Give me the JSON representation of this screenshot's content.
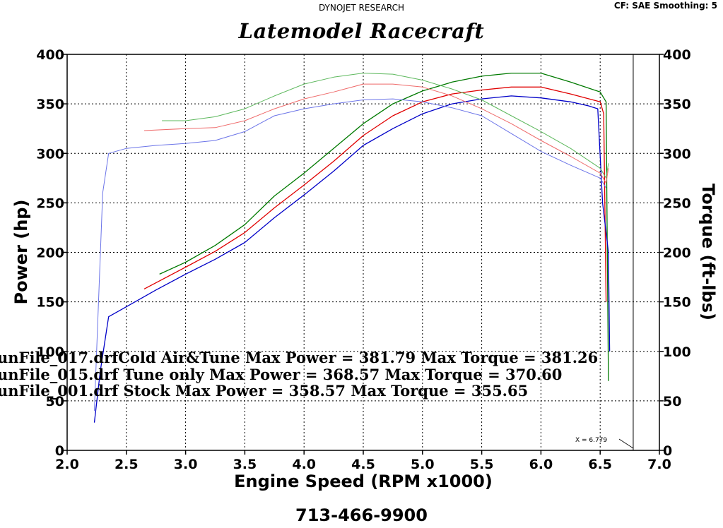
{
  "header": {
    "company": "DYNOJET RESEARCH",
    "settings": "CF: SAE  Smoothing: 5",
    "title": "Latemodel Racecraft",
    "footer_phone": "713-466-9900"
  },
  "chart_data": {
    "type": "line",
    "title": "Latemodel Racecraft",
    "xlabel": "Engine Speed (RPM x1000)",
    "ylabel_left": "Power (hp)",
    "ylabel_right": "Torque (ft-lbs)",
    "xlim": [
      2.0,
      7.0
    ],
    "ylim": [
      0,
      400
    ],
    "x_ticks": [
      "2.0",
      "2.5",
      "3.0",
      "3.5",
      "4.0",
      "4.5",
      "5.0",
      "5.5",
      "6.0",
      "6.5",
      "7.0"
    ],
    "y_ticks": [
      "0",
      "50",
      "100",
      "150",
      "200",
      "250",
      "300",
      "350",
      "400"
    ],
    "grid": true,
    "cursor": {
      "x": 6.779,
      "label": "X = 6.779"
    },
    "annotations": [
      "unFile_017.drfCold Air&Tune Max Power = 381.79     Max Torque = 381.26",
      "unFile_015.drf Tune only Max Power = 368.57     Max Torque = 370.60",
      "unFile_001.drf Stock Max Power = 358.57     Max Torque = 355.65"
    ],
    "series": [
      {
        "kind": "power",
        "run": "017",
        "color": "#007a00",
        "x": [
          2.78,
          3.0,
          3.25,
          3.5,
          3.75,
          4.0,
          4.25,
          4.5,
          4.75,
          5.0,
          5.25,
          5.5,
          5.75,
          6.0,
          6.25,
          6.5,
          6.55,
          6.56,
          6.57
        ],
        "y": [
          178,
          190,
          207,
          228,
          257,
          280,
          305,
          330,
          350,
          363,
          372,
          378,
          381,
          381,
          372,
          362,
          352,
          200,
          70
        ]
      },
      {
        "kind": "power",
        "run": "015",
        "color": "#e00000",
        "x": [
          2.65,
          3.0,
          3.25,
          3.5,
          3.75,
          4.0,
          4.25,
          4.5,
          4.75,
          5.0,
          5.25,
          5.5,
          5.75,
          6.0,
          6.25,
          6.5,
          6.53,
          6.55
        ],
        "y": [
          163,
          185,
          201,
          220,
          245,
          268,
          292,
          318,
          338,
          352,
          360,
          364,
          367,
          367,
          360,
          352,
          340,
          150
        ]
      },
      {
        "kind": "power",
        "run": "001",
        "color": "#0000c8",
        "x": [
          2.23,
          2.28,
          2.35,
          2.5,
          2.75,
          3.0,
          3.25,
          3.5,
          3.75,
          4.0,
          4.25,
          4.5,
          4.75,
          5.0,
          5.25,
          5.5,
          5.75,
          6.0,
          6.25,
          6.4,
          6.48,
          6.52,
          6.57,
          6.58
        ],
        "y": [
          28,
          80,
          135,
          145,
          162,
          178,
          193,
          210,
          235,
          258,
          282,
          308,
          325,
          340,
          350,
          355,
          358,
          356,
          352,
          348,
          345,
          250,
          200,
          100
        ]
      },
      {
        "kind": "torque",
        "run": "017",
        "color": "#5cb85c",
        "x": [
          2.8,
          3.0,
          3.25,
          3.5,
          3.75,
          4.0,
          4.25,
          4.5,
          4.75,
          5.0,
          5.25,
          5.5,
          5.75,
          6.0,
          6.25,
          6.5,
          6.55,
          6.57
        ],
        "y": [
          333,
          333,
          337,
          345,
          358,
          370,
          377,
          381,
          380,
          374,
          365,
          354,
          338,
          322,
          305,
          285,
          275,
          290
        ]
      },
      {
        "kind": "torque",
        "run": "015",
        "color": "#ef6b6b",
        "x": [
          2.65,
          3.0,
          3.25,
          3.5,
          3.75,
          4.0,
          4.25,
          4.5,
          4.75,
          5.0,
          5.25,
          5.5,
          5.75,
          6.0,
          6.25,
          6.5,
          6.55,
          6.57
        ],
        "y": [
          323,
          325,
          326,
          333,
          345,
          355,
          362,
          370,
          370,
          367,
          358,
          345,
          330,
          313,
          297,
          280,
          270,
          285
        ]
      },
      {
        "kind": "torque",
        "run": "001",
        "color": "#6b74e8",
        "x": [
          2.23,
          2.3,
          2.35,
          2.5,
          2.75,
          3.0,
          3.25,
          3.5,
          3.75,
          4.0,
          4.25,
          4.5,
          4.75,
          5.0,
          5.25,
          5.5,
          5.75,
          6.0,
          6.25,
          6.5,
          6.55
        ],
        "y": [
          40,
          260,
          300,
          305,
          308,
          310,
          313,
          322,
          338,
          345,
          350,
          354,
          355,
          352,
          346,
          338,
          320,
          302,
          288,
          275,
          265
        ]
      }
    ]
  }
}
